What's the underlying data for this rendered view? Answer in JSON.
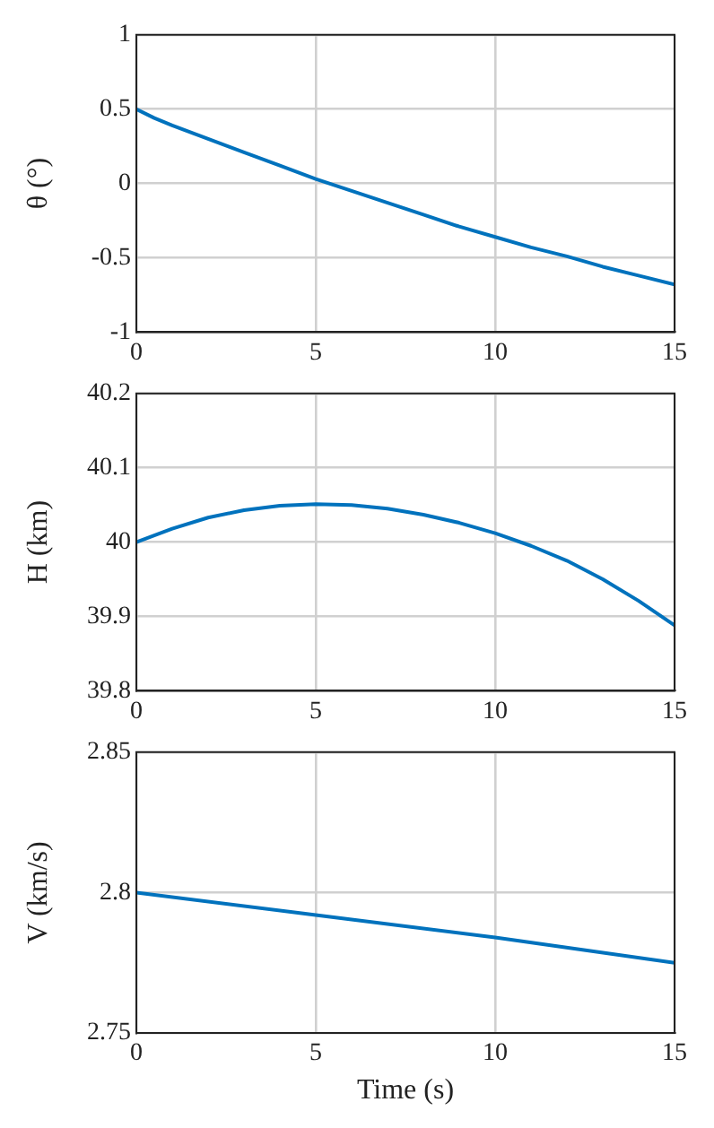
{
  "chart_data": [
    {
      "type": "line",
      "ylabel": "θ (°)",
      "x": [
        0,
        0.5,
        1,
        2,
        3,
        4,
        5,
        6,
        7,
        8,
        9,
        10,
        11,
        12,
        13,
        14,
        15
      ],
      "series": [
        {
          "color": "#0072bd",
          "values": [
            0.5,
            0.44,
            0.39,
            0.3,
            0.21,
            0.12,
            0.03,
            -0.05,
            -0.13,
            -0.21,
            -0.29,
            -0.36,
            -0.43,
            -0.49,
            -0.56,
            -0.62,
            -0.68
          ]
        }
      ],
      "xlim": [
        0,
        15
      ],
      "xticks": [
        0,
        5,
        10,
        15
      ],
      "ylim": [
        -1,
        1
      ],
      "yticks": [
        -1,
        -0.5,
        0,
        0.5,
        1
      ],
      "grid": true,
      "legend": false,
      "line_style": "solid",
      "marker": "none"
    },
    {
      "type": "line",
      "ylabel": "H (km)",
      "x": [
        0,
        1,
        2,
        3,
        4,
        5,
        6,
        7,
        8,
        9,
        10,
        11,
        12,
        13,
        14,
        15
      ],
      "series": [
        {
          "color": "#0072bd",
          "values": [
            40.0,
            40.018,
            40.033,
            40.043,
            40.049,
            40.051,
            40.05,
            40.045,
            40.037,
            40.026,
            40.012,
            39.995,
            39.975,
            39.95,
            39.921,
            39.888
          ]
        }
      ],
      "xlim": [
        0,
        15
      ],
      "xticks": [
        0,
        5,
        10,
        15
      ],
      "ylim": [
        39.8,
        40.2
      ],
      "yticks": [
        39.8,
        39.9,
        40,
        40.1,
        40.2
      ],
      "grid": true,
      "legend": false,
      "line_style": "solid",
      "marker": "none"
    },
    {
      "type": "line",
      "xlabel": "Time (s)",
      "ylabel": "V (km/s)",
      "x": [
        0,
        5,
        10,
        15
      ],
      "series": [
        {
          "color": "#0072bd",
          "values": [
            2.8,
            2.792,
            2.784,
            2.775
          ]
        }
      ],
      "xlim": [
        0,
        15
      ],
      "xticks": [
        0,
        5,
        10,
        15
      ],
      "ylim": [
        2.75,
        2.85
      ],
      "yticks": [
        2.75,
        2.8,
        2.85
      ],
      "grid": true,
      "legend": false,
      "line_style": "solid",
      "marker": "none"
    }
  ]
}
